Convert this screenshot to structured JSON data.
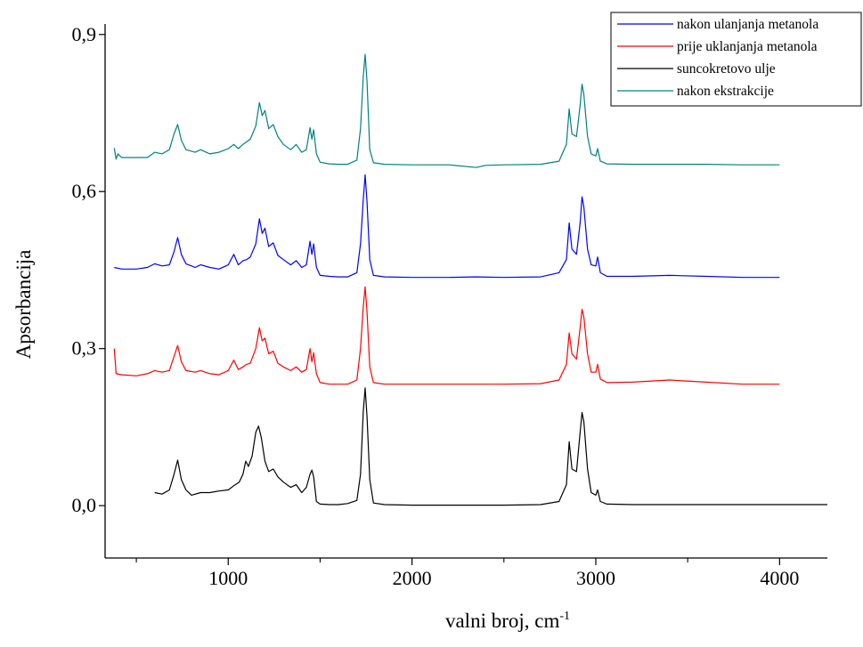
{
  "chart_data": {
    "type": "line",
    "title": "",
    "xlabel": "valni broj, cm",
    "xlabel_superscript": "-1",
    "ylabel": "Apsorbancija",
    "xlim": [
      330,
      4260
    ],
    "ylim": [
      -0.1,
      0.92
    ],
    "x_ticks": [
      1000,
      2000,
      3000,
      4000
    ],
    "x_tick_labels": [
      "1000",
      "2000",
      "3000",
      "4000"
    ],
    "x_minor_ticks": [
      500,
      1500,
      2500,
      3500
    ],
    "y_ticks": [
      0.0,
      0.3,
      0.6,
      0.9
    ],
    "y_tick_labels": [
      "0,0",
      "0,3",
      "0,6",
      "0,9"
    ],
    "grid": false,
    "legend_position": "top-right",
    "series": [
      {
        "name": "nakon ulanjanja metanola",
        "color": "#0000ff",
        "points": [
          [
            380,
            0.455
          ],
          [
            420,
            0.452
          ],
          [
            500,
            0.452
          ],
          [
            560,
            0.455
          ],
          [
            600,
            0.462
          ],
          [
            640,
            0.458
          ],
          [
            680,
            0.46
          ],
          [
            705,
            0.485
          ],
          [
            725,
            0.512
          ],
          [
            745,
            0.48
          ],
          [
            770,
            0.462
          ],
          [
            820,
            0.455
          ],
          [
            850,
            0.46
          ],
          [
            900,
            0.455
          ],
          [
            950,
            0.452
          ],
          [
            1000,
            0.46
          ],
          [
            1030,
            0.48
          ],
          [
            1055,
            0.46
          ],
          [
            1080,
            0.468
          ],
          [
            1100,
            0.47
          ],
          [
            1120,
            0.475
          ],
          [
            1150,
            0.5
          ],
          [
            1170,
            0.548
          ],
          [
            1185,
            0.52
          ],
          [
            1200,
            0.53
          ],
          [
            1220,
            0.495
          ],
          [
            1245,
            0.502
          ],
          [
            1270,
            0.478
          ],
          [
            1300,
            0.47
          ],
          [
            1340,
            0.46
          ],
          [
            1370,
            0.468
          ],
          [
            1400,
            0.455
          ],
          [
            1425,
            0.46
          ],
          [
            1445,
            0.505
          ],
          [
            1455,
            0.48
          ],
          [
            1465,
            0.5
          ],
          [
            1480,
            0.455
          ],
          [
            1500,
            0.44
          ],
          [
            1550,
            0.438
          ],
          [
            1600,
            0.437
          ],
          [
            1650,
            0.437
          ],
          [
            1700,
            0.445
          ],
          [
            1720,
            0.5
          ],
          [
            1735,
            0.585
          ],
          [
            1745,
            0.632
          ],
          [
            1755,
            0.58
          ],
          [
            1770,
            0.47
          ],
          [
            1790,
            0.44
          ],
          [
            1850,
            0.437
          ],
          [
            2000,
            0.436
          ],
          [
            2200,
            0.436
          ],
          [
            2350,
            0.437
          ],
          [
            2500,
            0.436
          ],
          [
            2700,
            0.437
          ],
          [
            2800,
            0.445
          ],
          [
            2840,
            0.47
          ],
          [
            2855,
            0.54
          ],
          [
            2870,
            0.49
          ],
          [
            2895,
            0.48
          ],
          [
            2915,
            0.54
          ],
          [
            2925,
            0.59
          ],
          [
            2935,
            0.57
          ],
          [
            2955,
            0.49
          ],
          [
            2975,
            0.46
          ],
          [
            3000,
            0.458
          ],
          [
            3010,
            0.475
          ],
          [
            3025,
            0.445
          ],
          [
            3060,
            0.438
          ],
          [
            3200,
            0.438
          ],
          [
            3400,
            0.44
          ],
          [
            3600,
            0.438
          ],
          [
            3800,
            0.436
          ],
          [
            4000,
            0.436
          ]
        ]
      },
      {
        "name": "prije uklanjanja metanola",
        "color": "#ff0000",
        "points": [
          [
            380,
            0.3
          ],
          [
            390,
            0.252
          ],
          [
            420,
            0.25
          ],
          [
            500,
            0.248
          ],
          [
            560,
            0.252
          ],
          [
            600,
            0.258
          ],
          [
            640,
            0.255
          ],
          [
            680,
            0.258
          ],
          [
            705,
            0.285
          ],
          [
            725,
            0.306
          ],
          [
            745,
            0.275
          ],
          [
            770,
            0.258
          ],
          [
            820,
            0.255
          ],
          [
            850,
            0.258
          ],
          [
            900,
            0.252
          ],
          [
            950,
            0.25
          ],
          [
            1000,
            0.258
          ],
          [
            1030,
            0.278
          ],
          [
            1055,
            0.26
          ],
          [
            1080,
            0.265
          ],
          [
            1100,
            0.27
          ],
          [
            1120,
            0.272
          ],
          [
            1150,
            0.3
          ],
          [
            1170,
            0.34
          ],
          [
            1185,
            0.315
          ],
          [
            1200,
            0.32
          ],
          [
            1220,
            0.29
          ],
          [
            1245,
            0.295
          ],
          [
            1270,
            0.272
          ],
          [
            1300,
            0.265
          ],
          [
            1340,
            0.258
          ],
          [
            1370,
            0.265
          ],
          [
            1400,
            0.255
          ],
          [
            1425,
            0.26
          ],
          [
            1445,
            0.3
          ],
          [
            1455,
            0.275
          ],
          [
            1465,
            0.292
          ],
          [
            1480,
            0.252
          ],
          [
            1500,
            0.235
          ],
          [
            1550,
            0.232
          ],
          [
            1600,
            0.232
          ],
          [
            1650,
            0.232
          ],
          [
            1700,
            0.24
          ],
          [
            1720,
            0.3
          ],
          [
            1735,
            0.38
          ],
          [
            1745,
            0.418
          ],
          [
            1755,
            0.37
          ],
          [
            1770,
            0.265
          ],
          [
            1790,
            0.235
          ],
          [
            1850,
            0.232
          ],
          [
            2000,
            0.232
          ],
          [
            2200,
            0.232
          ],
          [
            2350,
            0.232
          ],
          [
            2500,
            0.232
          ],
          [
            2700,
            0.233
          ],
          [
            2800,
            0.24
          ],
          [
            2840,
            0.27
          ],
          [
            2855,
            0.33
          ],
          [
            2870,
            0.29
          ],
          [
            2895,
            0.28
          ],
          [
            2915,
            0.34
          ],
          [
            2925,
            0.375
          ],
          [
            2935,
            0.36
          ],
          [
            2955,
            0.29
          ],
          [
            2975,
            0.255
          ],
          [
            3000,
            0.255
          ],
          [
            3010,
            0.27
          ],
          [
            3025,
            0.242
          ],
          [
            3060,
            0.235
          ],
          [
            3200,
            0.236
          ],
          [
            3400,
            0.24
          ],
          [
            3600,
            0.236
          ],
          [
            3800,
            0.232
          ],
          [
            4000,
            0.232
          ]
        ]
      },
      {
        "name": "suncokretovo ulje",
        "color": "#000000",
        "points": [
          [
            600,
            0.025
          ],
          [
            640,
            0.022
          ],
          [
            680,
            0.03
          ],
          [
            705,
            0.06
          ],
          [
            725,
            0.087
          ],
          [
            745,
            0.05
          ],
          [
            770,
            0.03
          ],
          [
            800,
            0.02
          ],
          [
            850,
            0.025
          ],
          [
            900,
            0.025
          ],
          [
            950,
            0.028
          ],
          [
            1000,
            0.03
          ],
          [
            1030,
            0.038
          ],
          [
            1060,
            0.045
          ],
          [
            1080,
            0.06
          ],
          [
            1095,
            0.085
          ],
          [
            1110,
            0.075
          ],
          [
            1130,
            0.095
          ],
          [
            1150,
            0.14
          ],
          [
            1165,
            0.152
          ],
          [
            1180,
            0.13
          ],
          [
            1200,
            0.085
          ],
          [
            1220,
            0.065
          ],
          [
            1245,
            0.07
          ],
          [
            1270,
            0.055
          ],
          [
            1300,
            0.045
          ],
          [
            1340,
            0.035
          ],
          [
            1370,
            0.04
          ],
          [
            1400,
            0.025
          ],
          [
            1425,
            0.035
          ],
          [
            1445,
            0.06
          ],
          [
            1455,
            0.068
          ],
          [
            1465,
            0.055
          ],
          [
            1480,
            0.008
          ],
          [
            1500,
            0.003
          ],
          [
            1550,
            0.002
          ],
          [
            1600,
            0.002
          ],
          [
            1650,
            0.004
          ],
          [
            1700,
            0.01
          ],
          [
            1720,
            0.06
          ],
          [
            1735,
            0.18
          ],
          [
            1745,
            0.225
          ],
          [
            1755,
            0.17
          ],
          [
            1770,
            0.05
          ],
          [
            1790,
            0.005
          ],
          [
            1850,
            0.002
          ],
          [
            2000,
            0.001
          ],
          [
            2200,
            0.001
          ],
          [
            2350,
            0.001
          ],
          [
            2500,
            0.001
          ],
          [
            2700,
            0.002
          ],
          [
            2800,
            0.008
          ],
          [
            2840,
            0.04
          ],
          [
            2855,
            0.122
          ],
          [
            2870,
            0.07
          ],
          [
            2895,
            0.065
          ],
          [
            2915,
            0.14
          ],
          [
            2925,
            0.178
          ],
          [
            2935,
            0.16
          ],
          [
            2955,
            0.07
          ],
          [
            2975,
            0.025
          ],
          [
            3000,
            0.02
          ],
          [
            3010,
            0.03
          ],
          [
            3025,
            0.008
          ],
          [
            3060,
            0.003
          ],
          [
            3200,
            0.002
          ],
          [
            3400,
            0.002
          ],
          [
            3600,
            0.002
          ],
          [
            3800,
            0.002
          ],
          [
            4000,
            0.002
          ],
          [
            4260,
            0.002
          ]
        ]
      },
      {
        "name": "nakon ekstrakcije",
        "color": "#008080",
        "points": [
          [
            380,
            0.683
          ],
          [
            390,
            0.662
          ],
          [
            400,
            0.672
          ],
          [
            420,
            0.665
          ],
          [
            500,
            0.665
          ],
          [
            560,
            0.665
          ],
          [
            600,
            0.675
          ],
          [
            640,
            0.672
          ],
          [
            680,
            0.68
          ],
          [
            705,
            0.71
          ],
          [
            725,
            0.728
          ],
          [
            745,
            0.698
          ],
          [
            770,
            0.68
          ],
          [
            820,
            0.675
          ],
          [
            850,
            0.68
          ],
          [
            900,
            0.672
          ],
          [
            950,
            0.675
          ],
          [
            1000,
            0.682
          ],
          [
            1030,
            0.69
          ],
          [
            1055,
            0.682
          ],
          [
            1080,
            0.69
          ],
          [
            1100,
            0.695
          ],
          [
            1120,
            0.7
          ],
          [
            1150,
            0.725
          ],
          [
            1170,
            0.77
          ],
          [
            1185,
            0.745
          ],
          [
            1200,
            0.755
          ],
          [
            1220,
            0.72
          ],
          [
            1245,
            0.728
          ],
          [
            1270,
            0.705
          ],
          [
            1300,
            0.69
          ],
          [
            1340,
            0.68
          ],
          [
            1370,
            0.69
          ],
          [
            1400,
            0.675
          ],
          [
            1425,
            0.68
          ],
          [
            1445,
            0.722
          ],
          [
            1455,
            0.7
          ],
          [
            1465,
            0.718
          ],
          [
            1480,
            0.672
          ],
          [
            1500,
            0.656
          ],
          [
            1550,
            0.653
          ],
          [
            1600,
            0.652
          ],
          [
            1650,
            0.652
          ],
          [
            1700,
            0.66
          ],
          [
            1720,
            0.72
          ],
          [
            1735,
            0.82
          ],
          [
            1745,
            0.862
          ],
          [
            1755,
            0.81
          ],
          [
            1770,
            0.68
          ],
          [
            1790,
            0.655
          ],
          [
            1850,
            0.652
          ],
          [
            2000,
            0.651
          ],
          [
            2200,
            0.651
          ],
          [
            2350,
            0.646
          ],
          [
            2400,
            0.65
          ],
          [
            2500,
            0.651
          ],
          [
            2700,
            0.652
          ],
          [
            2800,
            0.658
          ],
          [
            2840,
            0.69
          ],
          [
            2855,
            0.758
          ],
          [
            2870,
            0.71
          ],
          [
            2895,
            0.705
          ],
          [
            2915,
            0.765
          ],
          [
            2925,
            0.805
          ],
          [
            2935,
            0.785
          ],
          [
            2955,
            0.705
          ],
          [
            2975,
            0.672
          ],
          [
            3000,
            0.668
          ],
          [
            3010,
            0.682
          ],
          [
            3025,
            0.658
          ],
          [
            3060,
            0.653
          ],
          [
            3200,
            0.652
          ],
          [
            3400,
            0.652
          ],
          [
            3600,
            0.652
          ],
          [
            3800,
            0.651
          ],
          [
            4000,
            0.651
          ]
        ]
      }
    ]
  }
}
